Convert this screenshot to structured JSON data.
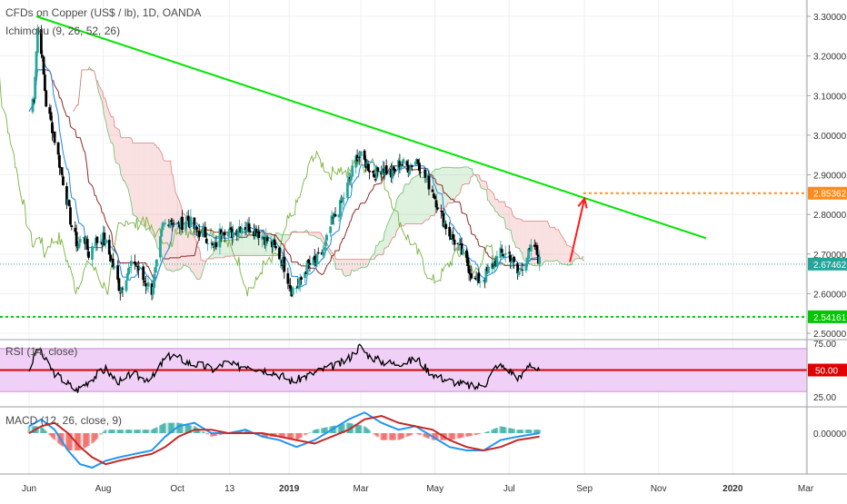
{
  "header": {
    "symbol_title": "CFDs on Copper (US$ / lb), 1D, OANDA",
    "ichimoku_label": "Ichimoku (9, 26, 52, 26)"
  },
  "colors": {
    "up_candle": "#26a69a",
    "down_candle": "#000000",
    "trendline": "#00e600",
    "support": "#00c800",
    "target": "#ff8c1a",
    "arrow": "#ff1a1a",
    "rsi": "#000000",
    "rsi_mid": "#e00000",
    "rsi_band": "#f0d0f6",
    "macd_line": "#2196f3",
    "signal_line": "#c62828"
  },
  "chart_data": [
    {
      "type": "candlestick",
      "title": "CFDs on Copper (US$ / lb), 1D, OANDA",
      "ylim": [
        2.5,
        3.3
      ],
      "y_ticks": [
        "3.30000",
        "3.20000",
        "3.10000",
        "3.00000",
        "2.90000",
        "2.80000",
        "2.70000",
        "2.60000",
        "2.50000"
      ],
      "x_ticks": [
        "Jun",
        "Aug",
        "Oct",
        "13",
        "2019",
        "Mar",
        "May",
        "Jul",
        "Sep",
        "Nov",
        "2020",
        "Mar"
      ],
      "indicator": "Ichimoku (9, 26, 52, 26)",
      "price_path": [
        [
          "2018-06-01",
          3.06
        ],
        [
          "2018-06-05",
          3.1
        ],
        [
          "2018-06-08",
          3.27
        ],
        [
          "2018-06-11",
          3.22
        ],
        [
          "2018-06-15",
          3.08
        ],
        [
          "2018-06-20",
          3.02
        ],
        [
          "2018-06-26",
          2.93
        ],
        [
          "2018-07-02",
          2.84
        ],
        [
          "2018-07-06",
          2.77
        ],
        [
          "2018-07-11",
          2.72
        ],
        [
          "2018-07-16",
          2.75
        ],
        [
          "2018-07-20",
          2.7
        ],
        [
          "2018-07-25",
          2.73
        ],
        [
          "2018-08-01",
          2.74
        ],
        [
          "2018-08-06",
          2.7
        ],
        [
          "2018-08-10",
          2.66
        ],
        [
          "2018-08-15",
          2.61
        ],
        [
          "2018-08-20",
          2.65
        ],
        [
          "2018-08-27",
          2.68
        ],
        [
          "2018-09-04",
          2.63
        ],
        [
          "2018-09-10",
          2.61
        ],
        [
          "2018-09-14",
          2.67
        ],
        [
          "2018-09-19",
          2.77
        ],
        [
          "2018-09-25",
          2.79
        ],
        [
          "2018-10-02",
          2.77
        ],
        [
          "2018-10-09",
          2.79
        ],
        [
          "2018-10-16",
          2.76
        ],
        [
          "2018-10-24",
          2.75
        ],
        [
          "2018-10-31",
          2.71
        ],
        [
          "2018-11-07",
          2.77
        ],
        [
          "2018-11-14",
          2.75
        ],
        [
          "2018-11-21",
          2.77
        ],
        [
          "2018-11-28",
          2.77
        ],
        [
          "2018-12-05",
          2.76
        ],
        [
          "2018-12-12",
          2.74
        ],
        [
          "2018-12-19",
          2.72
        ],
        [
          "2018-12-27",
          2.68
        ],
        [
          "2019-01-03",
          2.61
        ],
        [
          "2019-01-09",
          2.62
        ],
        [
          "2019-01-16",
          2.67
        ],
        [
          "2019-01-23",
          2.68
        ],
        [
          "2019-01-30",
          2.71
        ],
        [
          "2019-02-05",
          2.78
        ],
        [
          "2019-02-12",
          2.82
        ],
        [
          "2019-02-19",
          2.88
        ],
        [
          "2019-02-26",
          2.95
        ],
        [
          "2019-03-05",
          2.93
        ],
        [
          "2019-03-12",
          2.9
        ],
        [
          "2019-03-19",
          2.92
        ],
        [
          "2019-03-26",
          2.9
        ],
        [
          "2019-04-02",
          2.93
        ],
        [
          "2019-04-09",
          2.92
        ],
        [
          "2019-04-16",
          2.94
        ],
        [
          "2019-04-22",
          2.9
        ],
        [
          "2019-04-29",
          2.86
        ],
        [
          "2019-05-06",
          2.8
        ],
        [
          "2019-05-13",
          2.75
        ],
        [
          "2019-05-20",
          2.72
        ],
        [
          "2019-05-27",
          2.68
        ],
        [
          "2019-06-03",
          2.63
        ],
        [
          "2019-06-10",
          2.64
        ],
        [
          "2019-06-17",
          2.67
        ],
        [
          "2019-06-24",
          2.7
        ],
        [
          "2019-07-01",
          2.7
        ],
        [
          "2019-07-08",
          2.65
        ],
        [
          "2019-07-15",
          2.69
        ],
        [
          "2019-07-22",
          2.72
        ],
        [
          "2019-07-26",
          2.68
        ]
      ],
      "trendline": {
        "from": [
          "2018-06-07",
          3.3
        ],
        "to": [
          "2019-12-10",
          2.74
        ]
      },
      "levels": [
        {
          "label": "2.85362",
          "value": 2.85362,
          "style": "dotted",
          "color": "#ff8c1a"
        },
        {
          "label": "2.67462",
          "value": 2.67462,
          "style": "dotted",
          "color": "#26a69a"
        },
        {
          "label": "2.54161",
          "value": 2.54161,
          "style": "dashed",
          "color": "#00c800"
        }
      ],
      "projection": {
        "from": [
          "2019-08-20",
          2.68
        ],
        "to": [
          "2019-09-01",
          2.84
        ]
      }
    },
    {
      "type": "line",
      "title": "RSI (14, close)",
      "ylim": [
        25,
        75
      ],
      "y_ticks": [
        "75.00",
        "50.00",
        "25.00"
      ],
      "band": [
        30,
        70
      ],
      "midline": 50,
      "series": [
        {
          "name": "RSI (14, close)",
          "values": [
            [
              "2018-06-01",
              50
            ],
            [
              "2018-06-08",
              71
            ],
            [
              "2018-06-15",
              58
            ],
            [
              "2018-06-22",
              47
            ],
            [
              "2018-07-02",
              38
            ],
            [
              "2018-07-10",
              31
            ],
            [
              "2018-07-18",
              38
            ],
            [
              "2018-07-26",
              45
            ],
            [
              "2018-08-03",
              51
            ],
            [
              "2018-08-10",
              42
            ],
            [
              "2018-08-17",
              38
            ],
            [
              "2018-08-24",
              47
            ],
            [
              "2018-09-03",
              42
            ],
            [
              "2018-09-12",
              44
            ],
            [
              "2018-09-19",
              58
            ],
            [
              "2018-09-26",
              64
            ],
            [
              "2018-10-03",
              61
            ],
            [
              "2018-10-12",
              56
            ],
            [
              "2018-10-22",
              54
            ],
            [
              "2018-11-01",
              50
            ],
            [
              "2018-11-09",
              57
            ],
            [
              "2018-11-19",
              53
            ],
            [
              "2018-11-28",
              55
            ],
            [
              "2018-12-07",
              51
            ],
            [
              "2018-12-17",
              49
            ],
            [
              "2018-12-27",
              44
            ],
            [
              "2019-01-04",
              39
            ],
            [
              "2019-01-14",
              44
            ],
            [
              "2019-01-23",
              48
            ],
            [
              "2019-02-01",
              52
            ],
            [
              "2019-02-11",
              55
            ],
            [
              "2019-02-20",
              62
            ],
            [
              "2019-02-28",
              72
            ],
            [
              "2019-03-08",
              63
            ],
            [
              "2019-03-18",
              58
            ],
            [
              "2019-03-28",
              56
            ],
            [
              "2019-04-08",
              58
            ],
            [
              "2019-04-17",
              60
            ],
            [
              "2019-04-25",
              50
            ],
            [
              "2019-05-03",
              44
            ],
            [
              "2019-05-13",
              40
            ],
            [
              "2019-05-23",
              37
            ],
            [
              "2019-06-03",
              34
            ],
            [
              "2019-06-12",
              38
            ],
            [
              "2019-06-21",
              55
            ],
            [
              "2019-07-01",
              50
            ],
            [
              "2019-07-10",
              42
            ],
            [
              "2019-07-18",
              57
            ],
            [
              "2019-07-26",
              48
            ]
          ]
        }
      ]
    },
    {
      "type": "line",
      "title": "MACD (12, 26, close, 9)",
      "y_ticks": [
        "0.00000"
      ],
      "series": [
        {
          "name": "MACD",
          "values": [
            [
              "2018-06-01",
              0.02
            ],
            [
              "2018-06-11",
              0.04
            ],
            [
              "2018-06-22",
              0.01
            ],
            [
              "2018-07-03",
              -0.05
            ],
            [
              "2018-07-13",
              -0.09
            ],
            [
              "2018-07-23",
              -0.1
            ],
            [
              "2018-08-03",
              -0.08
            ],
            [
              "2018-08-14",
              -0.07
            ],
            [
              "2018-08-27",
              -0.06
            ],
            [
              "2018-09-10",
              -0.05
            ],
            [
              "2018-09-21",
              -0.01
            ],
            [
              "2018-10-02",
              0.02
            ],
            [
              "2018-10-15",
              0.03
            ],
            [
              "2018-10-29",
              0.0
            ],
            [
              "2018-11-12",
              0.0
            ],
            [
              "2018-11-26",
              0.01
            ],
            [
              "2018-12-10",
              -0.01
            ],
            [
              "2018-12-24",
              -0.02
            ],
            [
              "2019-01-07",
              -0.04
            ],
            [
              "2019-01-22",
              -0.02
            ],
            [
              "2019-02-05",
              0.01
            ],
            [
              "2019-02-19",
              0.04
            ],
            [
              "2019-03-04",
              0.06
            ],
            [
              "2019-03-18",
              0.03
            ],
            [
              "2019-04-01",
              0.01
            ],
            [
              "2019-04-15",
              0.02
            ],
            [
              "2019-04-29",
              -0.01
            ],
            [
              "2019-05-13",
              -0.04
            ],
            [
              "2019-05-27",
              -0.05
            ],
            [
              "2019-06-10",
              -0.05
            ],
            [
              "2019-06-24",
              -0.02
            ],
            [
              "2019-07-08",
              -0.01
            ],
            [
              "2019-07-26",
              0.0
            ]
          ]
        },
        {
          "name": "Signal",
          "values": [
            [
              "2018-06-01",
              0.0
            ],
            [
              "2018-06-11",
              0.02
            ],
            [
              "2018-06-22",
              0.03
            ],
            [
              "2018-07-03",
              0.0
            ],
            [
              "2018-07-13",
              -0.04
            ],
            [
              "2018-07-23",
              -0.07
            ],
            [
              "2018-08-03",
              -0.09
            ],
            [
              "2018-08-14",
              -0.08
            ],
            [
              "2018-08-27",
              -0.07
            ],
            [
              "2018-09-10",
              -0.06
            ],
            [
              "2018-09-21",
              -0.04
            ],
            [
              "2018-10-02",
              -0.01
            ],
            [
              "2018-10-15",
              0.01
            ],
            [
              "2018-10-29",
              0.01
            ],
            [
              "2018-11-12",
              0.0
            ],
            [
              "2018-11-26",
              0.0
            ],
            [
              "2018-12-10",
              0.0
            ],
            [
              "2018-12-24",
              -0.01
            ],
            [
              "2019-01-07",
              -0.02
            ],
            [
              "2019-01-22",
              -0.03
            ],
            [
              "2019-02-05",
              -0.01
            ],
            [
              "2019-02-19",
              0.01
            ],
            [
              "2019-03-04",
              0.04
            ],
            [
              "2019-03-18",
              0.05
            ],
            [
              "2019-04-01",
              0.03
            ],
            [
              "2019-04-15",
              0.02
            ],
            [
              "2019-04-29",
              0.01
            ],
            [
              "2019-05-13",
              -0.02
            ],
            [
              "2019-05-27",
              -0.04
            ],
            [
              "2019-06-10",
              -0.05
            ],
            [
              "2019-06-24",
              -0.04
            ],
            [
              "2019-07-08",
              -0.02
            ],
            [
              "2019-07-26",
              -0.01
            ]
          ]
        }
      ]
    }
  ],
  "rsi_legend": "RSI (14, close)",
  "macd_legend": "MACD (12, 26, close, 9)"
}
